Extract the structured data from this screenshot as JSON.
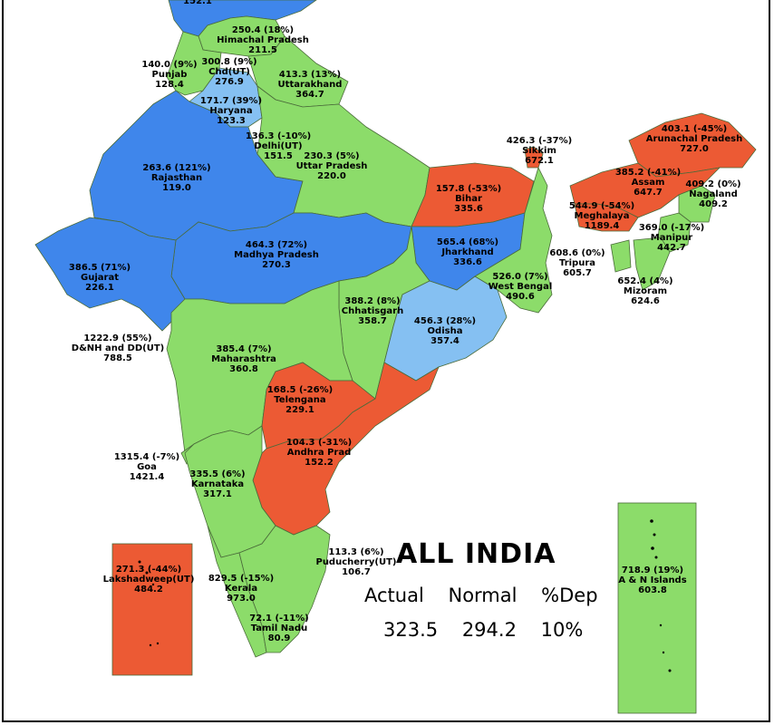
{
  "colors": {
    "excess": "#3f86eb",
    "normal_high": "#85c0f2",
    "normal": "#8cdc6a",
    "deficient": "#ec5a34"
  },
  "summary": {
    "title": "ALL INDIA",
    "headers": [
      "Actual",
      "Normal",
      "%Dep"
    ],
    "values": [
      "323.5",
      "294.2",
      "10%"
    ]
  },
  "regions": [
    {
      "id": "jk",
      "lines": [
        "152.1"
      ]
    },
    {
      "id": "himachal",
      "lines": [
        "250.4 (18%)",
        "Himachal Pradesh",
        "211.5"
      ]
    },
    {
      "id": "punjab",
      "lines": [
        "140.0 (9%)",
        "Punjab",
        "128.4"
      ]
    },
    {
      "id": "chd",
      "lines": [
        "300.8 (9%)",
        "Chd(UT)",
        "276.9"
      ]
    },
    {
      "id": "uttarakhand",
      "lines": [
        "413.3 (13%)",
        "Uttarakhand",
        "364.7"
      ]
    },
    {
      "id": "haryana",
      "lines": [
        "171.7 (39%)",
        "Haryana",
        "123.3"
      ]
    },
    {
      "id": "delhi",
      "lines": [
        "136.3 (-10%)",
        "Delhi(UT)",
        "151.5"
      ]
    },
    {
      "id": "rajasthan",
      "lines": [
        "263.6 (121%)",
        "Rajasthan",
        "119.0"
      ]
    },
    {
      "id": "up",
      "lines": [
        "230.3 (5%)",
        "Uttar Pradesh",
        "220.0"
      ]
    },
    {
      "id": "sikkim",
      "lines": [
        "426.3 (-37%)",
        "Sikkim",
        "672.1"
      ]
    },
    {
      "id": "arunachal",
      "lines": [
        "403.1 (-45%)",
        "Arunachal Pradesh",
        "727.0"
      ]
    },
    {
      "id": "assam",
      "lines": [
        "385.2 (-41%)",
        "Assam",
        "647.7"
      ]
    },
    {
      "id": "nagaland",
      "lines": [
        "409.2 (0%)",
        "Nagaland",
        "409.2"
      ]
    },
    {
      "id": "bihar",
      "lines": [
        "157.8 (-53%)",
        "Bihar",
        "335.6"
      ]
    },
    {
      "id": "meghalaya",
      "lines": [
        "544.9 (-54%)",
        "Meghalaya",
        "1189.4"
      ]
    },
    {
      "id": "manipur",
      "lines": [
        "369.0 (-17%)",
        "Manipur",
        "442.7"
      ]
    },
    {
      "id": "mp",
      "lines": [
        "464.3 (72%)",
        "Madhya Pradesh",
        "270.3"
      ]
    },
    {
      "id": "jharkhand",
      "lines": [
        "565.4 (68%)",
        "Jharkhand",
        "336.6"
      ]
    },
    {
      "id": "gujarat",
      "lines": [
        "386.5 (71%)",
        "Gujarat",
        "226.1"
      ]
    },
    {
      "id": "tripura",
      "lines": [
        "608.6 (0%)",
        "Tripura",
        "605.7"
      ]
    },
    {
      "id": "wb",
      "lines": [
        "526.0 (7%)",
        "West Bengal",
        "490.6"
      ]
    },
    {
      "id": "mizoram",
      "lines": [
        "652.4 (4%)",
        "Mizoram",
        "624.6"
      ]
    },
    {
      "id": "chhattisgarh",
      "lines": [
        "388.2 (8%)",
        "Chhatisgarh",
        "358.7"
      ]
    },
    {
      "id": "odisha",
      "lines": [
        "456.3 (28%)",
        "Odisha",
        "357.4"
      ]
    },
    {
      "id": "dnh",
      "lines": [
        "1222.9 (55%)",
        "D&NH and DD(UT)",
        "788.5"
      ]
    },
    {
      "id": "maharashtra",
      "lines": [
        "385.4 (7%)",
        "Maharashtra",
        "360.8"
      ]
    },
    {
      "id": "telangana",
      "lines": [
        "168.5 (-26%)",
        "Telengana",
        "229.1"
      ]
    },
    {
      "id": "ap",
      "lines": [
        "104.3 (-31%)",
        "Andhra Prad",
        "152.2"
      ]
    },
    {
      "id": "goa",
      "lines": [
        "1315.4 (-7%)",
        "Goa",
        "1421.4"
      ]
    },
    {
      "id": "karnataka",
      "lines": [
        "335.5 (6%)",
        "Karnataka",
        "317.1"
      ]
    },
    {
      "id": "puducherry",
      "lines": [
        "113.3 (6%)",
        "Puducherry(UT)",
        "106.7"
      ]
    },
    {
      "id": "lakshadweep",
      "lines": [
        "271.3 (-44%)",
        "Lakshadweep(UT)",
        "484.2"
      ]
    },
    {
      "id": "kerala",
      "lines": [
        "829.5 (-15%)",
        "Kerala",
        "973.0"
      ]
    },
    {
      "id": "tn",
      "lines": [
        "72.1 (-11%)",
        "Tamil Nadu",
        "80.9"
      ]
    },
    {
      "id": "andaman",
      "lines": [
        "718.9 (19%)",
        "A & N Islands",
        "603.8"
      ]
    }
  ]
}
